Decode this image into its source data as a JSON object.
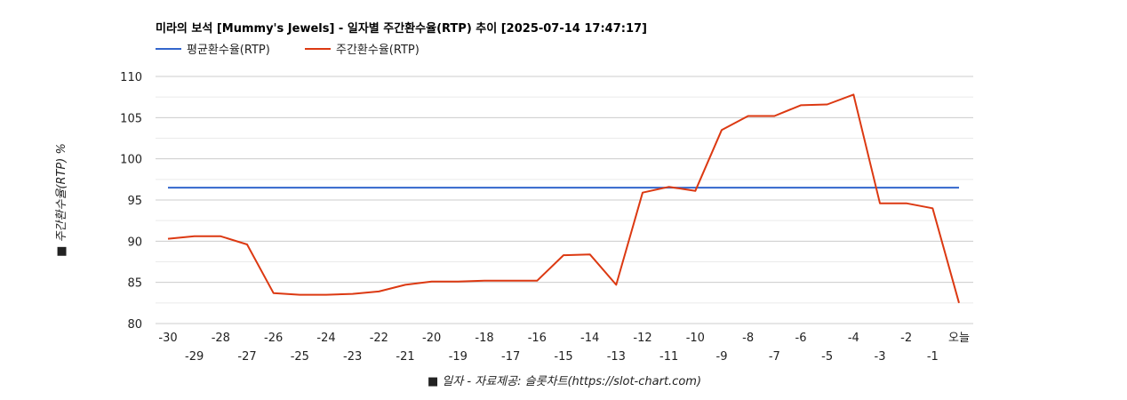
{
  "chart_data": {
    "type": "line",
    "title": "미라의 보석 [Mummy's Jewels] - 일자별 주간환수율(RTP) 추이 [2025-07-14 17:47:17]",
    "xlabel": "■ 일자 - 자료제공: 슬롯차트(https://slot-chart.com)",
    "ylabel": "■ 주간환수율(RTP) %",
    "ylim": [
      80,
      110
    ],
    "yticks": [
      "80",
      "85",
      "90",
      "95",
      "100",
      "105",
      "110"
    ],
    "grid": true,
    "legend_position": "top-left",
    "categories": [
      "-30",
      "-29",
      "-28",
      "-27",
      "-26",
      "-25",
      "-24",
      "-23",
      "-22",
      "-21",
      "-20",
      "-19",
      "-18",
      "-17",
      "-16",
      "-15",
      "-14",
      "-13",
      "-12",
      "-11",
      "-10",
      "-9",
      "-8",
      "-7",
      "-6",
      "-5",
      "-4",
      "-3",
      "-2",
      "-1",
      "오늘"
    ],
    "series": [
      {
        "name": "평균환수율(RTP)",
        "color": "#3366cc",
        "values": [
          96.5,
          96.5,
          96.5,
          96.5,
          96.5,
          96.5,
          96.5,
          96.5,
          96.5,
          96.5,
          96.5,
          96.5,
          96.5,
          96.5,
          96.5,
          96.5,
          96.5,
          96.5,
          96.5,
          96.5,
          96.5,
          96.5,
          96.5,
          96.5,
          96.5,
          96.5,
          96.5,
          96.5,
          96.5,
          96.5,
          96.5
        ]
      },
      {
        "name": "주간환수율(RTP)",
        "color": "#dc3912",
        "values": [
          90.3,
          90.6,
          90.6,
          89.6,
          83.7,
          83.5,
          83.5,
          83.6,
          83.9,
          84.7,
          85.1,
          85.1,
          85.2,
          85.2,
          85.2,
          88.3,
          88.4,
          84.7,
          95.9,
          96.6,
          96.1,
          103.5,
          105.2,
          105.2,
          106.5,
          106.6,
          107.8,
          94.6,
          94.6,
          94.0,
          82.5
        ]
      }
    ]
  }
}
